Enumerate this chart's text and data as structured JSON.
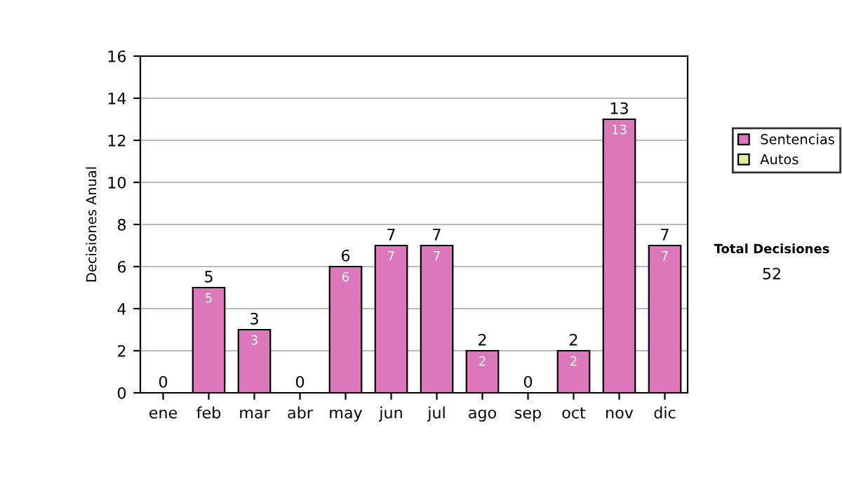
{
  "chart_data": {
    "type": "bar",
    "stacked": true,
    "ylabel": "Decisiones Anual",
    "categories": [
      "ene",
      "feb",
      "mar",
      "abr",
      "may",
      "jun",
      "jul",
      "ago",
      "sep",
      "oct",
      "nov",
      "dic"
    ],
    "series": [
      {
        "name": "Sentencias",
        "color": "#dd77bb",
        "values": [
          0,
          5,
          3,
          0,
          6,
          7,
          7,
          2,
          0,
          2,
          13,
          7
        ],
        "value_labels": [
          null,
          "5",
          "3",
          null,
          "6",
          "7",
          "7",
          "2",
          null,
          "2",
          "13",
          "7"
        ]
      },
      {
        "name": "Autos",
        "color": "#ddee99",
        "values": [
          0,
          0,
          0,
          0,
          0,
          0,
          0,
          0,
          0,
          0,
          0,
          0
        ]
      }
    ],
    "totals": [
      "0",
      "5",
      "3",
      "0",
      "6",
      "7",
      "7",
      "2",
      "0",
      "2",
      "13",
      "7"
    ],
    "ylim": [
      0,
      16
    ],
    "yticks": [
      0,
      2,
      4,
      6,
      8,
      10,
      12,
      14,
      16
    ],
    "grid": "y",
    "legend": "right",
    "annotations": [
      "Total Decisiones",
      "52"
    ]
  }
}
